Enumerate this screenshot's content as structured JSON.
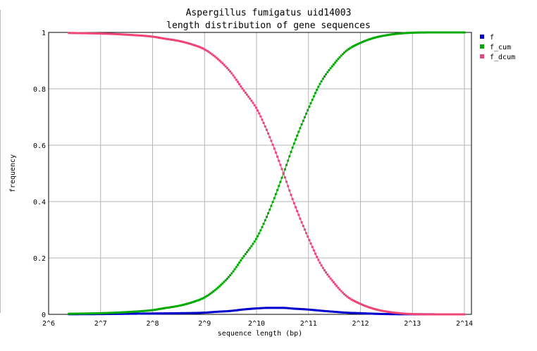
{
  "chart_data": {
    "type": "line",
    "title": "Aspergillus fumigatus uid14003",
    "subtitle": "length distribution of gene sequences",
    "xlabel": "sequence length (bp)",
    "ylabel": "frequency",
    "x_scale": "log2",
    "xlim": [
      64,
      18000
    ],
    "ylim": [
      0,
      1
    ],
    "x_ticks": [
      {
        "value": 64,
        "label": "2^6"
      },
      {
        "value": 128,
        "label": "2^7"
      },
      {
        "value": 256,
        "label": "2^8"
      },
      {
        "value": 512,
        "label": "2^9"
      },
      {
        "value": 1024,
        "label": "2^10"
      },
      {
        "value": 2048,
        "label": "2^11"
      },
      {
        "value": 4096,
        "label": "2^12"
      },
      {
        "value": 8192,
        "label": "2^13"
      },
      {
        "value": 16384,
        "label": "2^14"
      }
    ],
    "y_ticks": [
      {
        "value": 0,
        "label": "0"
      },
      {
        "value": 0.2,
        "label": "0.2"
      },
      {
        "value": 0.4,
        "label": "0.4"
      },
      {
        "value": 0.6,
        "label": "0.6"
      },
      {
        "value": 0.8,
        "label": "0.8"
      },
      {
        "value": 1,
        "label": "1"
      }
    ],
    "grid": true,
    "legend_position": "top-right-outside",
    "series": [
      {
        "name": "f",
        "color": "#0000cc",
        "x": [
          84,
          128,
          181,
          256,
          362,
          512,
          600,
          724,
          850,
          1024,
          1200,
          1448,
          1700,
          2048,
          2400,
          2896,
          3400,
          4096,
          5000,
          5793,
          8192,
          11585,
          16384
        ],
        "y": [
          0.0005,
          0.001,
          0.002,
          0.003,
          0.004,
          0.006,
          0.009,
          0.012,
          0.017,
          0.021,
          0.023,
          0.023,
          0.02,
          0.017,
          0.013,
          0.009,
          0.006,
          0.004,
          0.002,
          0.001,
          0.0004,
          0.0001,
          0.0
        ]
      },
      {
        "name": "f_cum",
        "color": "#00aa00",
        "x": [
          84,
          128,
          181,
          256,
          300,
          362,
          430,
          512,
          600,
          724,
          850,
          1024,
          1200,
          1448,
          1700,
          2048,
          2400,
          2896,
          3400,
          4096,
          5000,
          5793,
          6890,
          8192,
          11585,
          16384
        ],
        "y": [
          0.002,
          0.004,
          0.008,
          0.015,
          0.022,
          0.03,
          0.042,
          0.06,
          0.09,
          0.14,
          0.2,
          0.27,
          0.36,
          0.49,
          0.61,
          0.73,
          0.82,
          0.89,
          0.935,
          0.963,
          0.982,
          0.99,
          0.996,
          0.999,
          1.0,
          1.0
        ]
      },
      {
        "name": "f_dcum",
        "color": "#ee4477",
        "x": [
          84,
          128,
          181,
          256,
          300,
          362,
          430,
          512,
          600,
          724,
          850,
          1024,
          1200,
          1448,
          1700,
          2048,
          2400,
          2896,
          3400,
          4096,
          5000,
          5793,
          6890,
          8192,
          11585,
          16384
        ],
        "y": [
          0.998,
          0.996,
          0.992,
          0.985,
          0.978,
          0.97,
          0.958,
          0.94,
          0.91,
          0.86,
          0.8,
          0.73,
          0.64,
          0.51,
          0.39,
          0.27,
          0.18,
          0.11,
          0.065,
          0.037,
          0.018,
          0.01,
          0.004,
          0.001,
          0.0,
          0.0
        ]
      }
    ]
  }
}
